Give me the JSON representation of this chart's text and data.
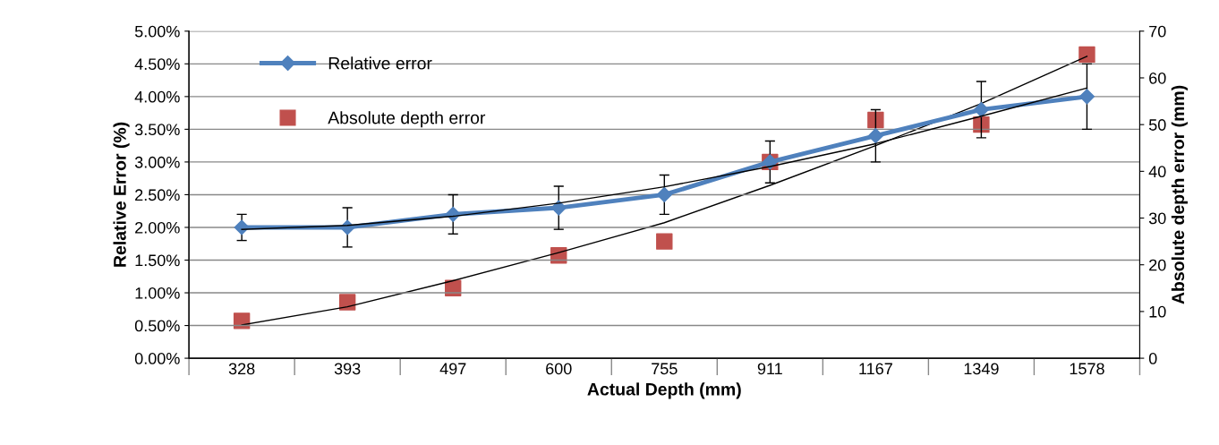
{
  "chart_data": {
    "type": "line",
    "xlabel": "Actual Depth (mm)",
    "ylabel": "Relative Error (%)",
    "y2label": "Absolute depth error (mm)",
    "categories": [
      "328",
      "393",
      "497",
      "600",
      "755",
      "911",
      "1167",
      "1349",
      "1578"
    ],
    "series": [
      {
        "name": "Relative error",
        "color": "#4f81bd",
        "marker": "diamond",
        "values": [
          2.0,
          2.0,
          2.2,
          2.3,
          2.5,
          3.0,
          3.4,
          3.8,
          4.0
        ],
        "errors": [
          0.2,
          0.3,
          0.3,
          0.33,
          0.3,
          0.32,
          0.4,
          0.43,
          0.5
        ]
      },
      {
        "name": "Absolute depth error",
        "type": "scatter",
        "axis": "y2",
        "color": "#c0504d",
        "marker": "square",
        "values": [
          8,
          12,
          15,
          22,
          25,
          42,
          51,
          50,
          65
        ]
      },
      {
        "color": "#000000",
        "marker": "none",
        "values": [
          1.97,
          2.03,
          2.17,
          2.37,
          2.62,
          2.93,
          3.28,
          3.7,
          4.13
        ]
      },
      {
        "axis": "y2",
        "color": "#000000",
        "marker": "none",
        "values": [
          7.1,
          11,
          16.6,
          22.6,
          29,
          37,
          45.5,
          54.5,
          64.6
        ]
      }
    ],
    "ylim": [
      0,
      5
    ],
    "yticks": [
      {
        "value": 0,
        "label": "0.00%"
      },
      {
        "value": 0.5,
        "label": "0.50%"
      },
      {
        "value": 1,
        "label": "1.00%"
      },
      {
        "value": 1.5,
        "label": "1.50%"
      },
      {
        "value": 2,
        "label": "2.00%"
      },
      {
        "value": 2.5,
        "label": "2.50%"
      },
      {
        "value": 3,
        "label": "3.00%"
      },
      {
        "value": 3.5,
        "label": "3.50%"
      },
      {
        "value": 4,
        "label": "4.00%"
      },
      {
        "value": 4.5,
        "label": "4.50%"
      },
      {
        "value": 5,
        "label": "5.00%"
      }
    ],
    "y2lim": [
      0,
      70
    ],
    "y2ticks": [
      0,
      10,
      20,
      30,
      40,
      50,
      60,
      70
    ],
    "grid": "y",
    "legend": "top left"
  }
}
